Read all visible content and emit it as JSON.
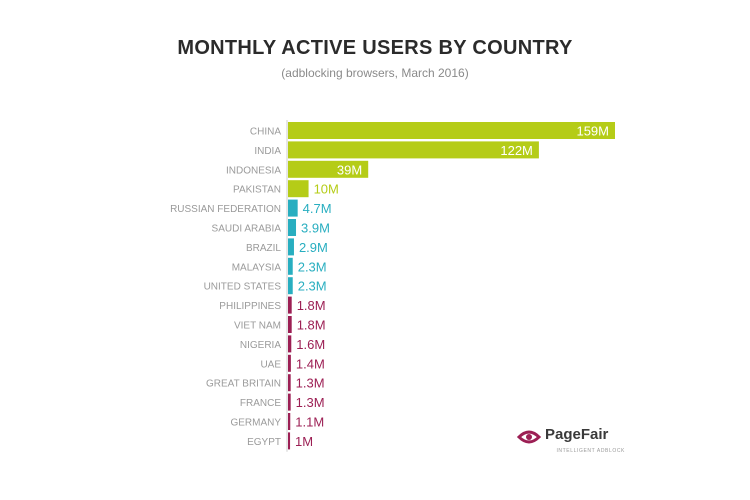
{
  "chart_data": {
    "type": "bar",
    "orientation": "horizontal",
    "title": "MONTHLY ACTIVE USERS BY COUNTRY",
    "subtitle": "(adblocking browsers, March 2016)",
    "categories": [
      "CHINA",
      "INDIA",
      "INDONESIA",
      "PAKISTAN",
      "RUSSIAN FEDERATION",
      "SAUDI ARABIA",
      "BRAZIL",
      "MALAYSIA",
      "UNITED STATES",
      "PHILIPPINES",
      "VIET NAM",
      "NIGERIA",
      "UAE",
      "GREAT BRITAIN",
      "FRANCE",
      "GERMANY",
      "EGYPT"
    ],
    "values": [
      159,
      122,
      39,
      10,
      4.7,
      3.9,
      2.9,
      2.3,
      2.3,
      1.8,
      1.8,
      1.6,
      1.4,
      1.3,
      1.3,
      1.1,
      1
    ],
    "labels": [
      "159M",
      "122M",
      "39M",
      "10M",
      "4.7M",
      "3.9M",
      "2.9M",
      "2.3M",
      "2.3M",
      "1.8M",
      "1.8M",
      "1.6M",
      "1.4M",
      "1.3M",
      "1.3M",
      "1.1M",
      "1M"
    ],
    "colors": [
      "#b5cc17",
      "#b5cc17",
      "#b5cc17",
      "#b5cc17",
      "#28aec0",
      "#28aec0",
      "#28aec0",
      "#28aec0",
      "#28aec0",
      "#9c1f54",
      "#9c1f54",
      "#9c1f54",
      "#9c1f54",
      "#9c1f54",
      "#9c1f54",
      "#9c1f54",
      "#9c1f54"
    ],
    "label_inside": [
      true,
      true,
      true,
      false,
      false,
      false,
      false,
      false,
      false,
      false,
      false,
      false,
      false,
      false,
      false,
      false,
      false
    ],
    "xlim": [
      0,
      159
    ],
    "grid": false,
    "legend": "none"
  },
  "branding": {
    "name": "PageFair",
    "tagline": "INTELLIGENT ADBLOCK",
    "logo_icon": "pagefair-logo-icon",
    "logo_color": "#9c1f54"
  }
}
